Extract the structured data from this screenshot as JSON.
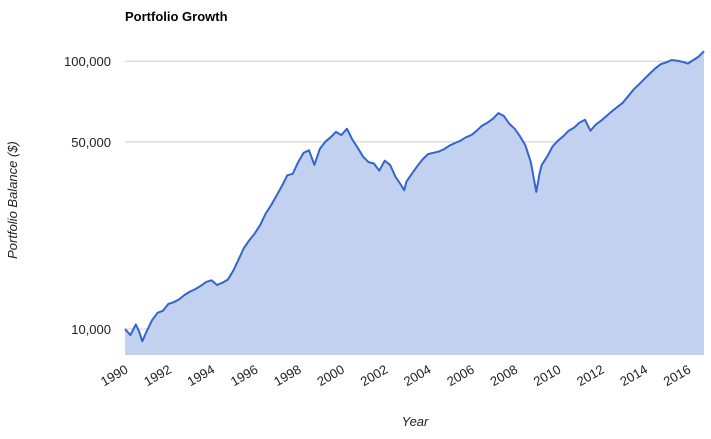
{
  "chart_data": {
    "type": "area",
    "title": "Portfolio Growth",
    "xlabel": "Year",
    "ylabel": "Portfolio Balance ($)",
    "y_scale": "log",
    "ylim": [
      8000,
      120000
    ],
    "xlim": [
      1990.0,
      2016.75
    ],
    "y_ticks": [
      10000,
      50000,
      100000
    ],
    "y_tick_labels": [
      "10,000",
      "50,000",
      "100,000"
    ],
    "x_ticks": [
      1990,
      1992,
      1994,
      1996,
      1998,
      2000,
      2002,
      2004,
      2006,
      2008,
      2010,
      2012,
      2014,
      2016
    ],
    "x_tick_labels": [
      "1990",
      "1992",
      "1994",
      "1996",
      "1998",
      "2000",
      "2002",
      "2004",
      "2006",
      "2008",
      "2010",
      "2012",
      "2014",
      "2016"
    ],
    "grid": true,
    "legend": "none",
    "colors": {
      "line": "#3366cc",
      "fill": "#c2d1f0",
      "grid": "#cccccc"
    },
    "series": [
      {
        "x": [
          1990.0,
          1990.25,
          1990.5,
          1990.65,
          1990.8,
          1991.0,
          1991.25,
          1991.5,
          1991.75,
          1992.0,
          1992.25,
          1992.5,
          1992.75,
          1993.0,
          1993.25,
          1993.5,
          1993.75,
          1994.0,
          1994.25,
          1994.5,
          1994.75,
          1995.0,
          1995.25,
          1995.5,
          1995.75,
          1996.0,
          1996.25,
          1996.5,
          1996.75,
          1997.0,
          1997.25,
          1997.5,
          1997.75,
          1998.0,
          1998.25,
          1998.5,
          1998.75,
          1999.0,
          1999.25,
          1999.5,
          1999.75,
          2000.0,
          2000.25,
          2000.5,
          2000.75,
          2001.0,
          2001.25,
          2001.5,
          2001.75,
          2002.0,
          2002.25,
          2002.5,
          2002.75,
          2002.9,
          2003.0,
          2003.25,
          2003.5,
          2003.75,
          2004.0,
          2004.25,
          2004.5,
          2004.75,
          2005.0,
          2005.25,
          2005.5,
          2005.75,
          2006.0,
          2006.25,
          2006.5,
          2006.75,
          2007.0,
          2007.25,
          2007.5,
          2007.75,
          2008.0,
          2008.25,
          2008.5,
          2008.75,
          2008.9,
          2009.0,
          2009.15,
          2009.25,
          2009.5,
          2009.75,
          2010.0,
          2010.25,
          2010.5,
          2010.75,
          2011.0,
          2011.25,
          2011.5,
          2011.75,
          2012.0,
          2012.25,
          2012.5,
          2012.75,
          2013.0,
          2013.25,
          2013.5,
          2013.75,
          2014.0,
          2014.25,
          2014.5,
          2014.75,
          2015.0,
          2015.25,
          2015.5,
          2015.75,
          2016.0,
          2016.25,
          2016.5,
          2016.75
        ],
        "values": [
          10000,
          9500,
          10400,
          9800,
          9000,
          9800,
          10800,
          11500,
          11700,
          12400,
          12600,
          12900,
          13400,
          13800,
          14100,
          14500,
          15000,
          15200,
          14600,
          14900,
          15300,
          16500,
          18200,
          20100,
          21500,
          22800,
          24500,
          27000,
          29000,
          31500,
          34200,
          37500,
          38000,
          42000,
          45500,
          46500,
          41000,
          47000,
          50000,
          52000,
          54500,
          53000,
          56000,
          51000,
          47500,
          44000,
          42000,
          41500,
          39000,
          42500,
          41000,
          37000,
          34500,
          33000,
          35500,
          38000,
          40500,
          43000,
          45000,
          45500,
          46000,
          47000,
          48500,
          49500,
          50500,
          52000,
          53000,
          55000,
          57500,
          59000,
          61000,
          64000,
          62500,
          58500,
          56000,
          52500,
          48500,
          42000,
          36000,
          32500,
          38000,
          41000,
          44000,
          48000,
          50500,
          52500,
          55000,
          56500,
          59000,
          60500,
          55000,
          58000,
          60000,
          62500,
          65000,
          67500,
          70000,
          74000,
          78500,
          82000,
          86000,
          90000,
          94000,
          97500,
          99000,
          101000,
          100500,
          99500,
          98000,
          101000,
          104000,
          109000
        ]
      }
    ]
  }
}
